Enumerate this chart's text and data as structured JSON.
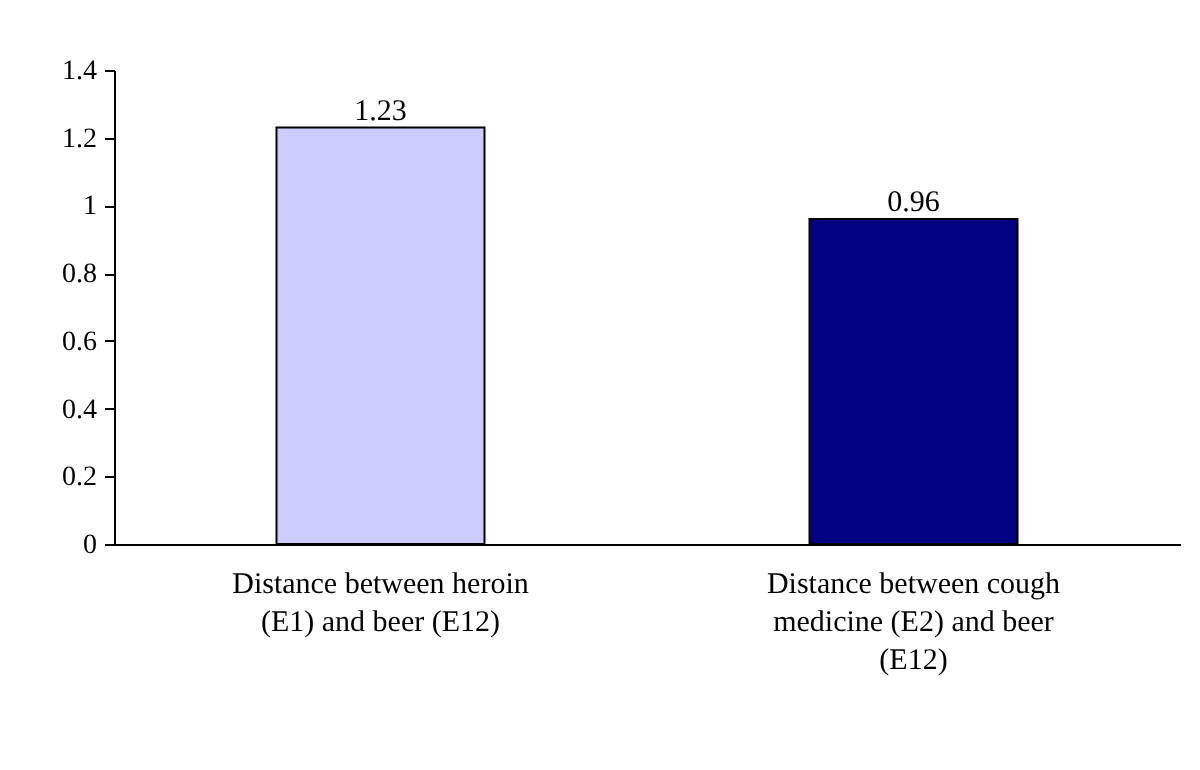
{
  "chart_data": {
    "type": "bar",
    "categories": [
      "Distance between heroin (E1) and beer (E12)",
      "Distance between cough medicine (E2) and beer (E12)"
    ],
    "values": [
      1.23,
      0.96
    ],
    "colors": [
      "#ccccff",
      "#000080"
    ],
    "ylim": [
      0,
      1.4
    ],
    "yticks": [
      0,
      0.2,
      0.4,
      0.6,
      0.8,
      1,
      1.2,
      1.4
    ],
    "grid": false,
    "data_labels": true
  }
}
